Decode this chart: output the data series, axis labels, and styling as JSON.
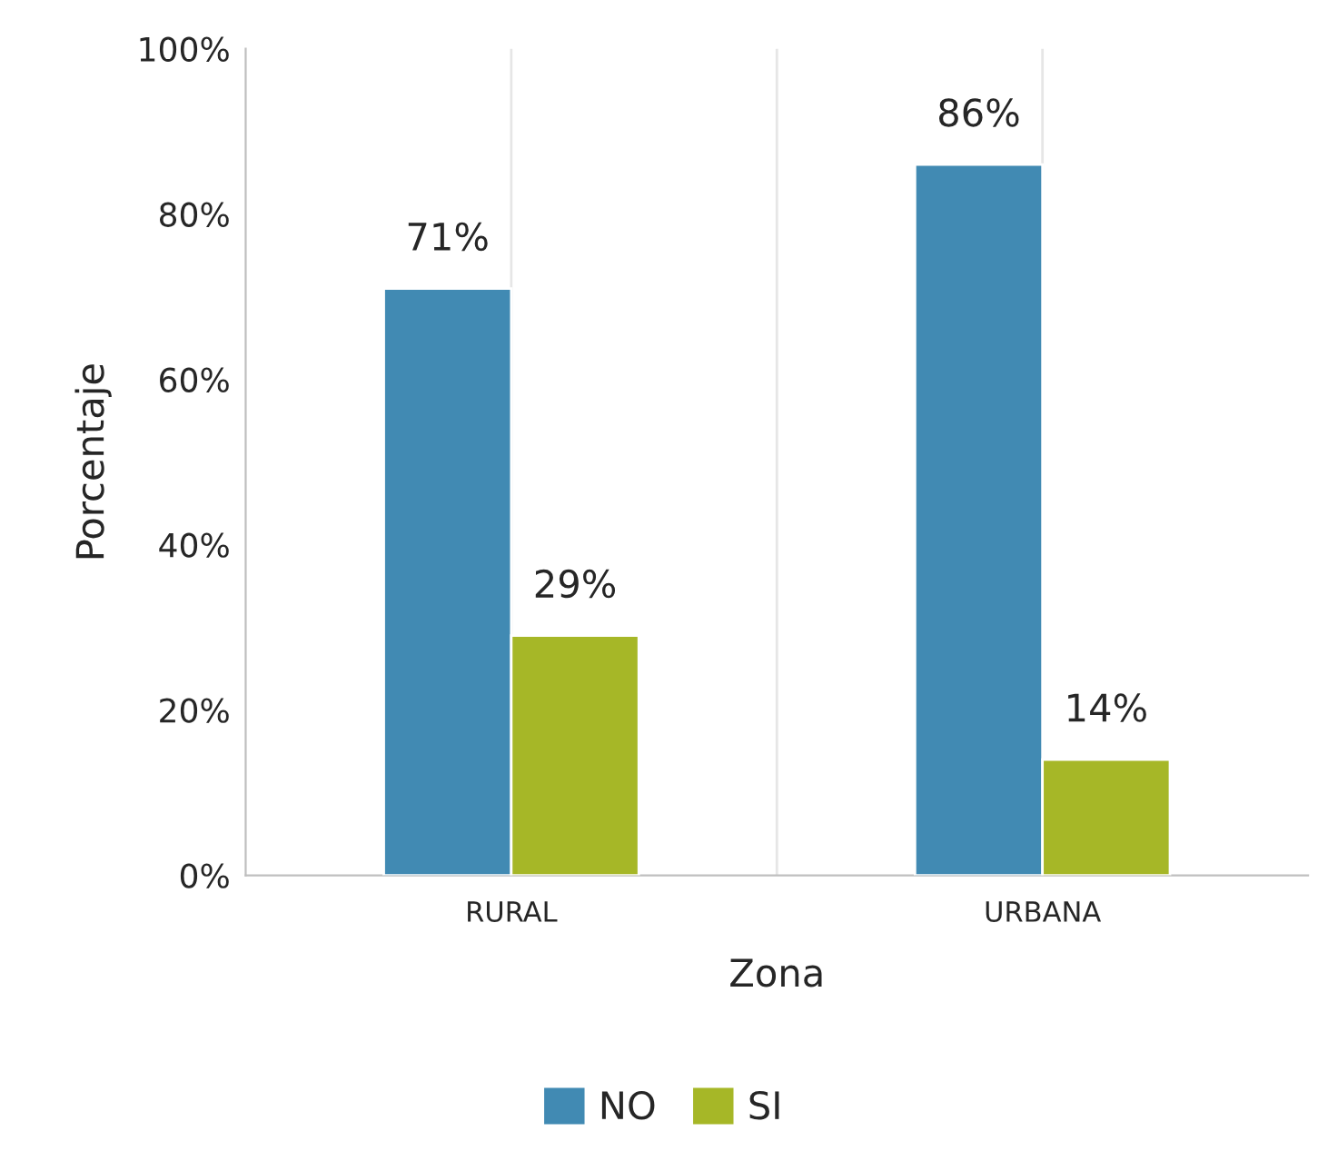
{
  "chart_data": {
    "type": "bar",
    "xlabel": "Zona",
    "ylabel": "Porcentaje",
    "categories": [
      "RURAL",
      "URBANA"
    ],
    "series": [
      {
        "name": "NO",
        "color": "#418ab3",
        "values": [
          71,
          86
        ],
        "value_labels": [
          "71%",
          "86%"
        ]
      },
      {
        "name": "SI",
        "color": "#a6b727",
        "values": [
          29,
          14
        ],
        "value_labels": [
          "29%",
          "14%"
        ]
      }
    ],
    "ylim": [
      0,
      100
    ],
    "yticks": [
      {
        "value": 0,
        "label": "0%"
      },
      {
        "value": 20,
        "label": "20%"
      },
      {
        "value": 40,
        "label": "40%"
      },
      {
        "value": 60,
        "label": "60%"
      },
      {
        "value": 80,
        "label": "80%"
      },
      {
        "value": 100,
        "label": "100%"
      }
    ],
    "grid": "x",
    "legend": "bottom"
  }
}
